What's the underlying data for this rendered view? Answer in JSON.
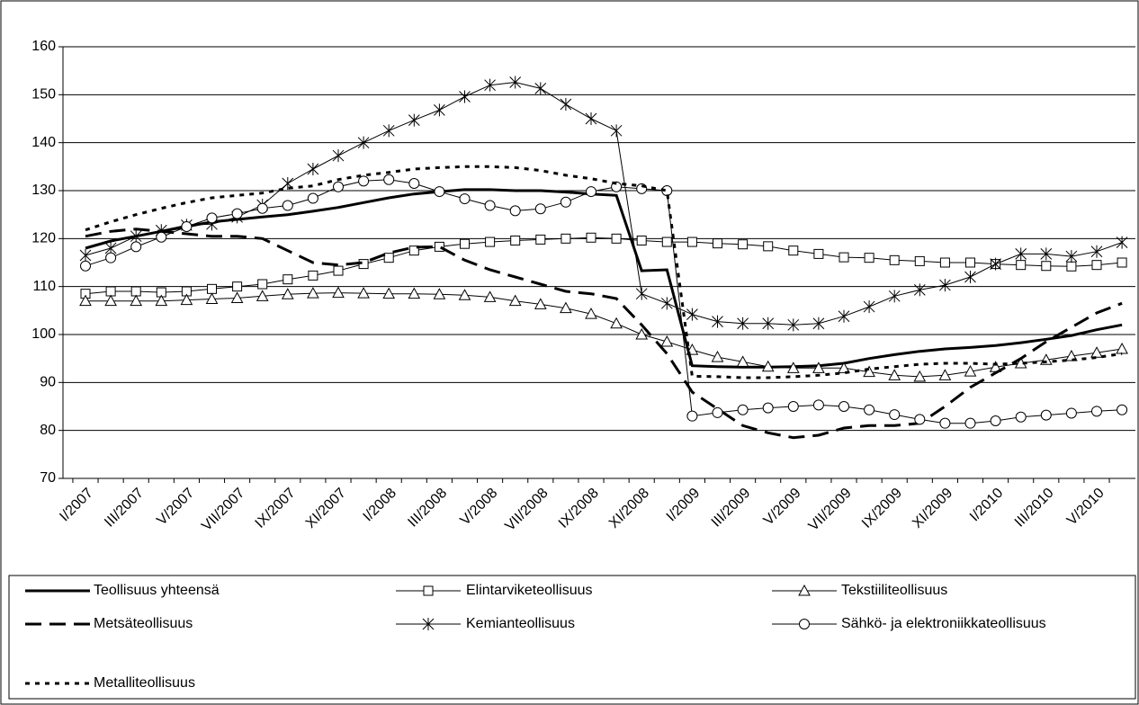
{
  "chart_data": {
    "type": "line",
    "categories": [
      "I/2007",
      null,
      "III/2007",
      null,
      "V/2007",
      null,
      "VII/2007",
      null,
      "IX/2007",
      null,
      "XI/2007",
      null,
      "I/2008",
      null,
      "III/2008",
      null,
      "V/2008",
      null,
      "VII/2008",
      null,
      "IX/2008",
      null,
      "XI/2008",
      null,
      "I/2009",
      null,
      "III/2009",
      null,
      "V/2009",
      null,
      "VII/2009",
      null,
      "IX/2009",
      null,
      "XI/2009",
      null,
      "I/2010",
      null,
      "III/2010",
      null,
      "V/2010",
      null
    ],
    "ylim": [
      70,
      160
    ],
    "yticks": [
      70,
      80,
      90,
      100,
      110,
      120,
      130,
      140,
      150,
      160
    ],
    "grid": true,
    "legend": "bottom",
    "series": [
      {
        "name": "Teollisuus yhteensä",
        "color": "#000000",
        "dash": "solid",
        "width": 3,
        "marker": "none",
        "values": [
          118,
          119.5,
          120.5,
          121.5,
          122.5,
          123.5,
          124,
          124.5,
          125,
          125.7,
          126.5,
          127.5,
          128.5,
          129.3,
          129.8,
          130.2,
          130.2,
          130,
          130,
          129.7,
          129.3,
          129,
          113.3,
          113.5,
          93.5,
          93.3,
          93.2,
          93.2,
          93.3,
          93.5,
          94,
          95,
          95.8,
          96.5,
          97,
          97.3,
          97.7,
          98.3,
          99,
          99.8,
          101,
          102
        ]
      },
      {
        "name": "Elintarviketeollisuus",
        "color": "#000000",
        "dash": "solid",
        "width": 1,
        "marker": "square",
        "values": [
          108.5,
          109,
          109,
          108.8,
          109,
          109.5,
          110,
          110.5,
          111.5,
          112.3,
          113.3,
          114.7,
          116,
          117.5,
          118.3,
          118.9,
          119.3,
          119.6,
          119.8,
          120,
          120.2,
          120,
          119.6,
          119.3,
          119.3,
          119,
          118.8,
          118.4,
          117.5,
          116.8,
          116.1,
          116,
          115.5,
          115.3,
          115,
          115,
          114.7,
          114.5,
          114.3,
          114.2,
          114.5,
          115
        ]
      },
      {
        "name": "Tekstiiliteollisuus",
        "color": "#000000",
        "dash": "solid",
        "width": 1,
        "marker": "triangle",
        "values": [
          107,
          107,
          107,
          107,
          107.2,
          107.4,
          107.6,
          108,
          108.4,
          108.6,
          108.7,
          108.6,
          108.5,
          108.5,
          108.4,
          108.2,
          107.8,
          107,
          106.3,
          105.5,
          104.3,
          102.3,
          100,
          98.5,
          96.8,
          95.3,
          94.3,
          93.3,
          93,
          93,
          93,
          92.2,
          91.5,
          91.2,
          91.5,
          92.3,
          93.2,
          94,
          94.7,
          95.5,
          96.2,
          97
        ]
      },
      {
        "name": "Metsäteollisuus",
        "color": "#000000",
        "dash": "long",
        "width": 3,
        "marker": "none",
        "values": [
          120.5,
          121.5,
          122,
          121.5,
          121,
          120.5,
          120.5,
          120,
          117.5,
          115,
          114.5,
          115,
          117,
          118.2,
          118.3,
          115.5,
          113.5,
          112,
          110.5,
          109,
          108.5,
          107.5,
          102,
          96,
          88,
          84.5,
          81,
          79.5,
          78.5,
          79,
          80.5,
          81,
          81,
          81.5,
          85,
          89,
          92,
          95,
          98.5,
          101.5,
          104.5,
          106.5
        ]
      },
      {
        "name": "Kemianteollisuus",
        "color": "#000000",
        "dash": "solid",
        "width": 1,
        "marker": "asterisk",
        "values": [
          116.5,
          118,
          120.5,
          121.7,
          122.8,
          123,
          124.5,
          127,
          131.5,
          134.5,
          137.3,
          140,
          142.5,
          144.7,
          146.8,
          149.6,
          152,
          152.6,
          151.3,
          148,
          145,
          142.5,
          108.5,
          106.5,
          104.2,
          102.7,
          102.3,
          102.3,
          102,
          102.3,
          103.8,
          105.8,
          108,
          109.3,
          110.3,
          112,
          114.7,
          116.8,
          116.8,
          116.3,
          117.3,
          119.2
        ]
      },
      {
        "name": "Sähkö- ja elektroniikkateollisuus",
        "color": "#000000",
        "dash": "solid",
        "width": 1,
        "marker": "circle",
        "values": [
          114.3,
          116,
          118.3,
          120.3,
          122.5,
          124.3,
          125.2,
          126.3,
          126.9,
          128.4,
          130.8,
          132,
          132.3,
          131.5,
          129.8,
          128.3,
          126.9,
          125.8,
          126.2,
          127.6,
          129.8,
          130.8,
          130.4,
          130,
          83,
          83.7,
          84.3,
          84.7,
          85,
          85.3,
          85,
          84.3,
          83.3,
          82.3,
          81.5,
          81.5,
          82,
          82.8,
          83.2,
          83.6,
          84,
          84.3
        ]
      },
      {
        "name": "Metalliteollisuus",
        "color": "#000000",
        "dash": "short",
        "width": 3,
        "marker": "none",
        "values": [
          121.8,
          123.5,
          125,
          126.3,
          127.5,
          128.5,
          129,
          129.5,
          130.5,
          131,
          132.3,
          133.2,
          133.8,
          134.5,
          134.8,
          135,
          135,
          134.8,
          134.2,
          133.2,
          132.5,
          131.5,
          131,
          130,
          91.3,
          91.2,
          91,
          91,
          91.2,
          91.5,
          92,
          92.8,
          93.3,
          93.8,
          94,
          94,
          93.8,
          94,
          94.3,
          94.7,
          95.2,
          96
        ]
      }
    ]
  }
}
